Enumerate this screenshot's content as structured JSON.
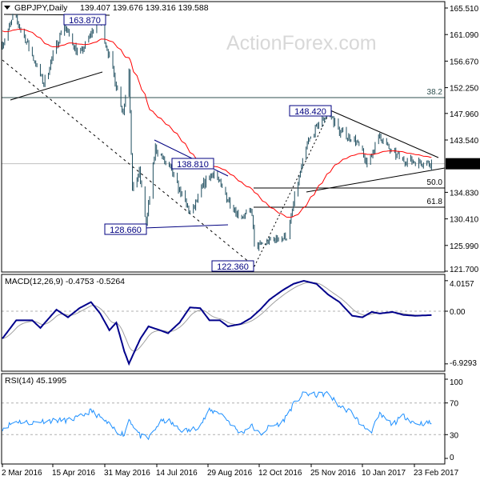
{
  "header": {
    "symbol": "GBPJPY,Daily",
    "ohlc": "139.407 139.676 139.316 139.588"
  },
  "watermark": "ActionForex.com",
  "colors": {
    "bars": "#1f4e5f",
    "ma": "#ff0000",
    "macd": "#00008b",
    "signal": "#a0a0a0",
    "rsi": "#1e90ff",
    "labels": "#000080"
  },
  "x_ticks": [
    "2 Mar 2016",
    "15 Apr 2016",
    "31 May 2016",
    "14 Jul 2016",
    "29 Aug 2016",
    "12 Oct 2016",
    "25 Nov 2016",
    "10 Jan 2017",
    "23 Feb 2017"
  ],
  "chart_data": [
    {
      "type": "ohlc",
      "title": "GBPJPY,Daily",
      "ylim": [
        121.7,
        165.51
      ],
      "y_ticks": [
        "165.510",
        "161.090",
        "156.670",
        "152.250",
        "147.960",
        "143.540",
        "139.588",
        "134.830",
        "130.410",
        "125.990",
        "121.700"
      ],
      "current_price": "139.588",
      "closes": [
        [
          "2016-03-02",
          159.5
        ],
        [
          "2016-03-12",
          164.2
        ],
        [
          "2016-03-21",
          160.8
        ],
        [
          "2016-04-07",
          152.9
        ],
        [
          "2016-04-24",
          162.8
        ],
        [
          "2016-05-08",
          157.5
        ],
        [
          "2016-05-25",
          163.9
        ],
        [
          "2016-06-01",
          158.8
        ],
        [
          "2016-06-15",
          148.2
        ],
        [
          "2016-06-20",
          155.5
        ],
        [
          "2016-06-23",
          134.9
        ],
        [
          "2016-06-29",
          138.2
        ],
        [
          "2016-07-05",
          129.5
        ],
        [
          "2016-07-13",
          142.2
        ],
        [
          "2016-07-27",
          138.2
        ],
        [
          "2016-08-13",
          130.9
        ],
        [
          "2016-08-24",
          136.2
        ],
        [
          "2016-09-02",
          138.2
        ],
        [
          "2016-09-10",
          134.9
        ],
        [
          "2016-09-24",
          130.9
        ],
        [
          "2016-10-05",
          131.5
        ],
        [
          "2016-10-07",
          125.6
        ],
        [
          "2016-10-22",
          126.9
        ],
        [
          "2016-11-05",
          127.5
        ],
        [
          "2016-11-12",
          134.9
        ],
        [
          "2016-11-22",
          142.9
        ],
        [
          "2016-12-02",
          146.2
        ],
        [
          "2016-12-11",
          148.2
        ],
        [
          "2016-12-20",
          144.9
        ],
        [
          "2017-01-03",
          143.5
        ],
        [
          "2017-01-13",
          139.5
        ],
        [
          "2017-01-24",
          144.2
        ],
        [
          "2017-02-03",
          141.5
        ],
        [
          "2017-02-14",
          140.2
        ],
        [
          "2017-03-10",
          139.6
        ]
      ],
      "annotations": [
        "163.870",
        "138.810",
        "128.660",
        "122.360",
        "148.420"
      ],
      "fib_levels": [
        {
          "label": "38.2",
          "price": 150.6
        },
        {
          "label": "50.0",
          "price": 135.55
        },
        {
          "label": "61.8",
          "price": 132.35
        }
      ]
    },
    {
      "type": "line",
      "title": "MACD(12,26,9) -0.4753 -0.5264",
      "y_ticks": [
        "4.0157",
        "0.00",
        "-6.9293"
      ],
      "dates": [
        "2016-03-02",
        "2016-03-14",
        "2016-03-28",
        "2016-04-04",
        "2016-04-18",
        "2016-04-28",
        "2016-05-08",
        "2016-05-18",
        "2016-05-26",
        "2016-06-03",
        "2016-06-09",
        "2016-06-16",
        "2016-06-20",
        "2016-06-30",
        "2016-07-07",
        "2016-07-17",
        "2016-07-24",
        "2016-08-03",
        "2016-08-12",
        "2016-08-21",
        "2016-08-29",
        "2016-09-07",
        "2016-09-14",
        "2016-09-25",
        "2016-10-04",
        "2016-10-12",
        "2016-10-20",
        "2016-10-31",
        "2016-11-10",
        "2016-11-19",
        "2016-11-30",
        "2016-12-10",
        "2016-12-20",
        "2016-12-31",
        "2017-01-09",
        "2017-01-17",
        "2017-01-24",
        "2017-02-04",
        "2017-02-14",
        "2017-02-24",
        "2017-03-12"
      ],
      "macd": [
        -3.6,
        -1.2,
        -1.2,
        -2.2,
        0.2,
        -0.8,
        0.4,
        1.2,
        -0.3,
        -2.5,
        -1.5,
        -5.3,
        -6.9,
        -3.6,
        -2.0,
        -2.5,
        -2.9,
        -1.5,
        0.5,
        0.4,
        -1.2,
        -1.2,
        -2.0,
        -1.7,
        -0.9,
        0.2,
        1.5,
        2.7,
        3.6,
        4.0,
        3.6,
        2.2,
        1.2,
        -0.6,
        -0.8,
        -0.1,
        -0.3,
        -0.1,
        -0.5,
        -0.6,
        -0.5
      ]
    },
    {
      "type": "line",
      "title": "RSI(14) 45.1995",
      "ylim": [
        0,
        100
      ],
      "y_ticks": [
        "100",
        "70",
        "30",
        "0"
      ],
      "levels": [
        70,
        30
      ],
      "rsi": [
        38,
        47,
        45,
        47,
        48,
        48,
        52,
        60,
        52,
        42,
        35,
        30,
        50,
        28,
        25,
        46,
        48,
        36,
        35,
        42,
        60,
        58,
        48,
        31,
        42,
        30,
        40,
        45,
        68,
        82,
        80,
        82,
        66,
        58,
        40,
        35,
        55,
        43,
        54,
        44,
        45
      ]
    }
  ]
}
